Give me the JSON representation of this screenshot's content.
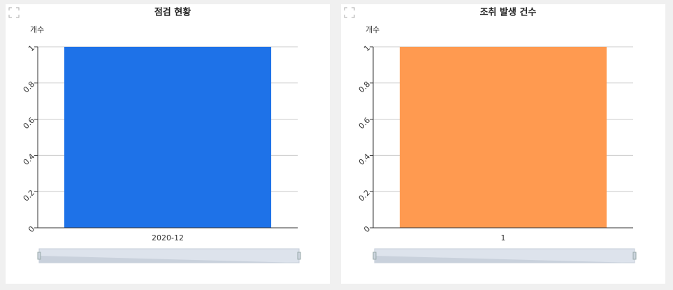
{
  "chart_data": [
    {
      "type": "bar",
      "title": "점검 현황",
      "y_label": "개수",
      "categories": [
        "2020-12"
      ],
      "values": [
        1
      ],
      "color": "#1e72e8",
      "ylim": [
        0,
        1
      ],
      "yticks": [
        0,
        0.2,
        0.4,
        0.6,
        0.8,
        1
      ],
      "grid": true
    },
    {
      "type": "bar",
      "title": "조취 발생 건수",
      "y_label": "개수",
      "categories": [
        "1"
      ],
      "values": [
        1
      ],
      "color": "#ff9a50",
      "ylim": [
        0,
        1
      ],
      "yticks": [
        0,
        0.2,
        0.4,
        0.6,
        0.8,
        1
      ],
      "grid": true
    }
  ]
}
